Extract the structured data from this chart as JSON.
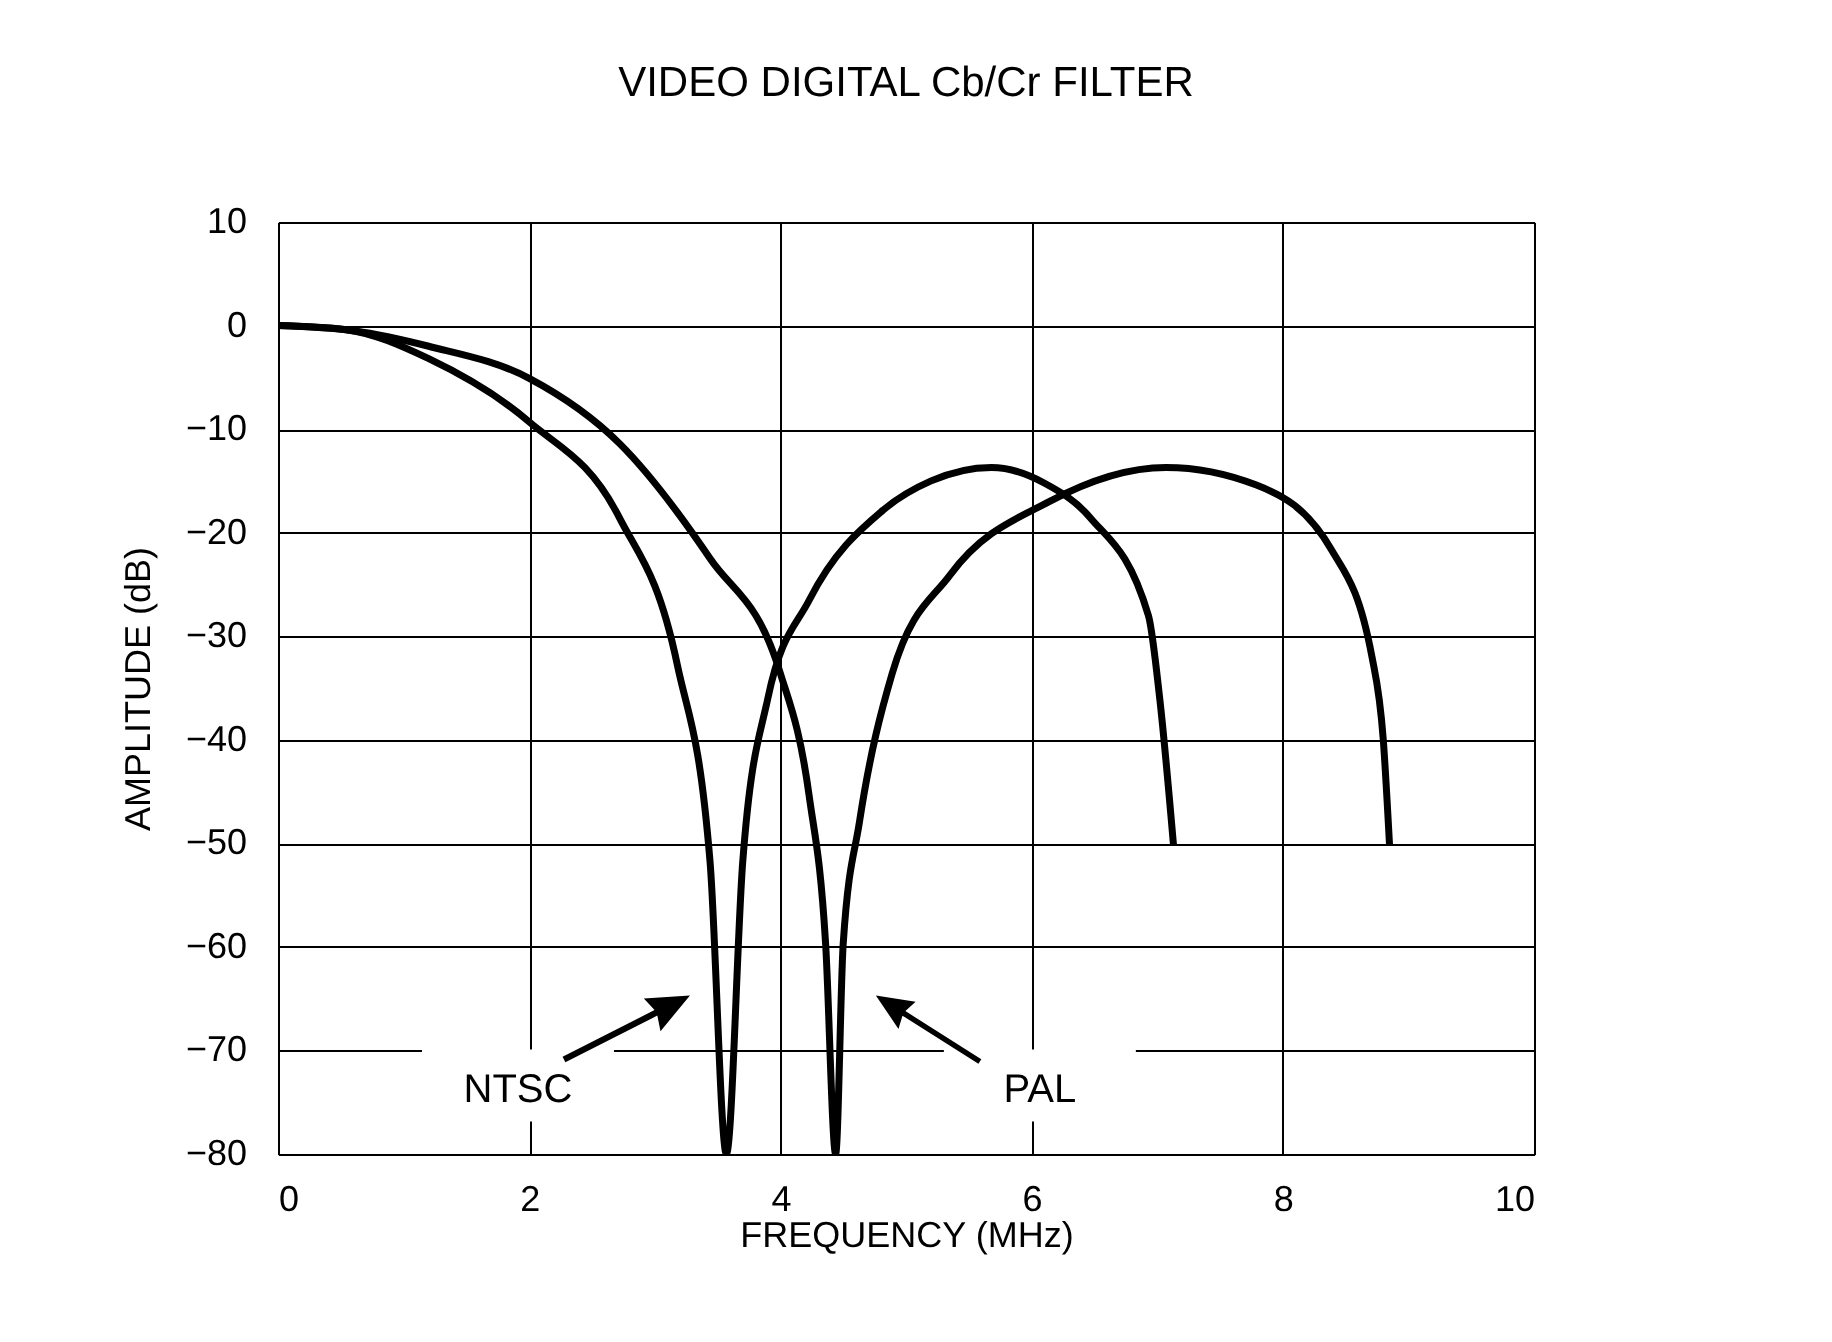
{
  "chart_data": {
    "type": "line",
    "title": "VIDEO DIGITAL Cb/Cr FILTER",
    "xlabel": "FREQUENCY (MHz)",
    "ylabel": "AMPLITUDE (dB)",
    "xlim": [
      0,
      10
    ],
    "xticks": [
      0,
      2,
      4,
      6,
      8,
      10
    ],
    "ylim": [
      -80,
      10
    ],
    "yticks": [
      10,
      0,
      -10,
      -20,
      -30,
      -40,
      -50,
      -60,
      -70,
      -80
    ],
    "grid": true,
    "legend": false,
    "marker": "none",
    "line_style": "solid",
    "series": [
      {
        "color": "#000000",
        "x": [
          0,
          0.54,
          1.2,
          2,
          2.72,
          3.18,
          3.44,
          3.57,
          3.7,
          3.9,
          4.23,
          4.82,
          5.2,
          5.68,
          6.1,
          6.47,
          6.93,
          7.02,
          7.13
        ],
        "values": [
          0,
          -0.4,
          -3.2,
          -9.3,
          -18.6,
          -32.8,
          -51.8,
          -80,
          -51.8,
          -36,
          -26.5,
          -17.8,
          -15,
          -13.7,
          -15.2,
          -18.6,
          -28,
          -36,
          -50.2
        ]
      },
      {
        "color": "#000000",
        "x": [
          0,
          0.6,
          1.2,
          2,
          2.72,
          3.44,
          4.0,
          4.23,
          4.36,
          4.44,
          4.5,
          4.63,
          4.89,
          5.35,
          6.14,
          7.07,
          7.79,
          8.39,
          8.71,
          8.8,
          8.85
        ],
        "values": [
          0,
          -0.5,
          -2,
          -5.1,
          -11.4,
          -22.5,
          -33.6,
          -45.5,
          -59.7,
          -80,
          -59.7,
          -47.9,
          -33.6,
          -24.1,
          -17,
          -13.7,
          -15.4,
          -21.7,
          -32,
          -40,
          -50.2
        ]
      }
    ],
    "annotations": [
      "NTSC",
      "PAL"
    ]
  }
}
